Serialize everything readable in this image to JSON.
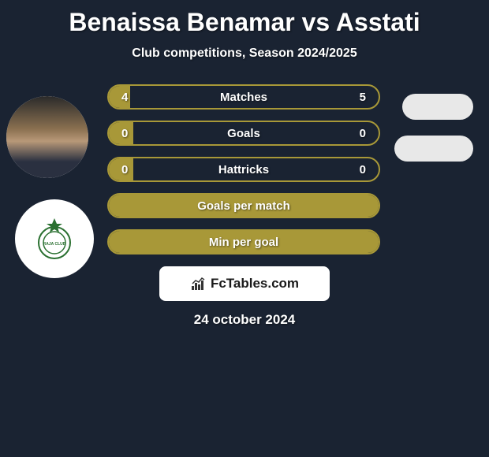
{
  "title": "Benaissa Benamar vs Asstati",
  "subtitle": "Club competitions, Season 2024/2025",
  "date": "24 october 2024",
  "branding": "FcTables.com",
  "colors": {
    "background": "#1a2332",
    "bar_border": "#a89838",
    "bar_fill": "#a89838",
    "text": "#ffffff",
    "avatar_bg": "#e8e8e8",
    "club_bg": "#ffffff"
  },
  "stats": [
    {
      "label": "Matches",
      "left_value": "4",
      "right_value": "5",
      "left_fill_pct": 8,
      "right_fill_pct": 0,
      "border_color": "#a89838",
      "fill_color": "#a89838"
    },
    {
      "label": "Goals",
      "left_value": "0",
      "right_value": "0",
      "left_fill_pct": 9,
      "right_fill_pct": 0,
      "border_color": "#a89838",
      "fill_color": "#a89838"
    },
    {
      "label": "Hattricks",
      "left_value": "0",
      "right_value": "0",
      "left_fill_pct": 9,
      "right_fill_pct": 0,
      "border_color": "#a89838",
      "fill_color": "#a89838"
    },
    {
      "label": "Goals per match",
      "left_value": "",
      "right_value": "",
      "left_fill_pct": 100,
      "right_fill_pct": 0,
      "border_color": "#a89838",
      "fill_color": "#a89838"
    },
    {
      "label": "Min per goal",
      "left_value": "",
      "right_value": "",
      "left_fill_pct": 100,
      "right_fill_pct": 0,
      "border_color": "#a89838",
      "fill_color": "#a89838"
    }
  ]
}
